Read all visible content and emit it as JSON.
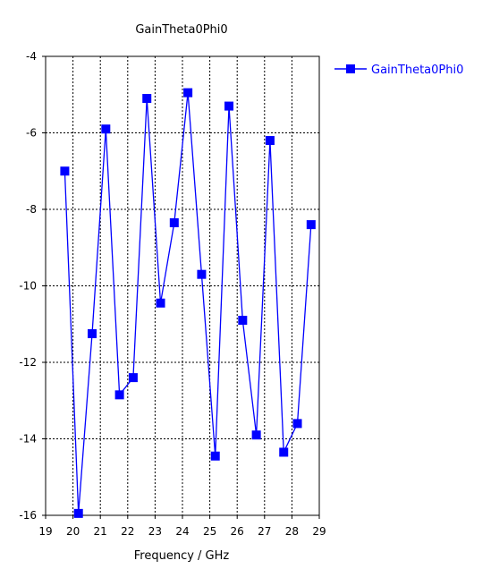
{
  "chart_data": {
    "type": "line",
    "title": "GainTheta0Phi0",
    "xlabel": "Frequency / GHz",
    "ylabel": "",
    "xlim": [
      19,
      29
    ],
    "ylim": [
      -16,
      -4
    ],
    "x_ticks": [
      "19",
      "20",
      "21",
      "22",
      "23",
      "24",
      "25",
      "26",
      "27",
      "28",
      "29"
    ],
    "y_ticks": [
      "-4",
      "-6",
      "-8",
      "-10",
      "-12",
      "-14",
      "-16"
    ],
    "grid": true,
    "legend_position": "top-right",
    "series": [
      {
        "name": "GainTheta0Phi0",
        "color": "#0000ff",
        "marker": "square",
        "x": [
          19.7,
          20.2,
          20.7,
          21.2,
          21.7,
          22.2,
          22.7,
          23.2,
          23.7,
          24.2,
          24.7,
          25.2,
          25.7,
          26.2,
          26.7,
          27.2,
          27.7,
          28.2,
          28.7
        ],
        "y": [
          -7.0,
          -15.95,
          -11.25,
          -5.9,
          -12.85,
          -12.4,
          -5.1,
          -10.45,
          -8.35,
          -4.95,
          -9.7,
          -14.45,
          -5.3,
          -10.9,
          -13.9,
          -6.2,
          -14.35,
          -13.6,
          -8.4
        ]
      }
    ]
  }
}
